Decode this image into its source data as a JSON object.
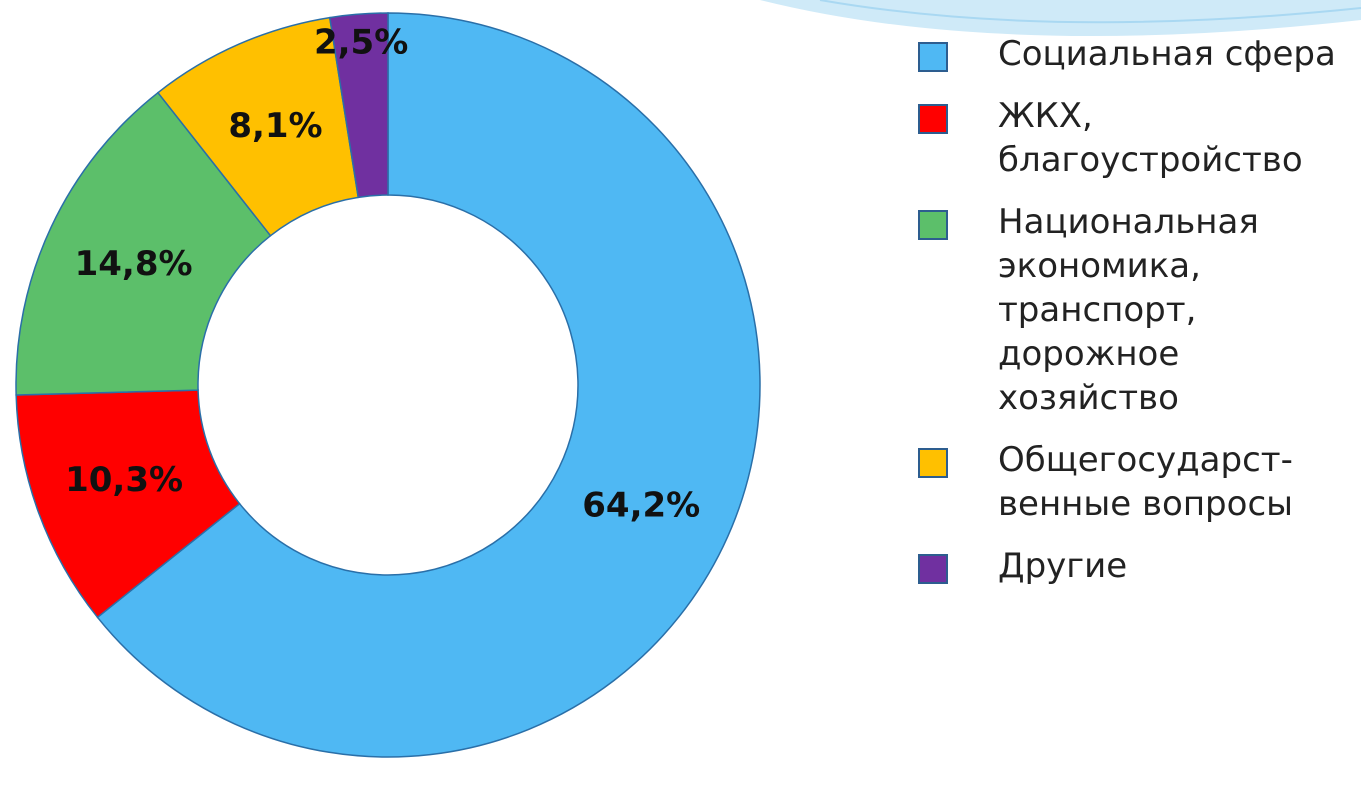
{
  "chart_data": {
    "type": "donut",
    "categories": [
      "Социальная сфера",
      "ЖКХ, благоустройство",
      "Национальная экономика, транспорт, дорожное хозяйство",
      "Общегосударст-венные вопросы",
      "Другие"
    ],
    "values": [
      64.2,
      10.3,
      14.8,
      8.1,
      2.5
    ],
    "value_labels": [
      "64,2%",
      "10,3%",
      "14,8%",
      "8,1%",
      "2,5%"
    ],
    "colors": [
      "#4fb8f3",
      "#ff0000",
      "#5cbf6a",
      "#ffc000",
      "#7030a0"
    ],
    "legend": "right"
  }
}
